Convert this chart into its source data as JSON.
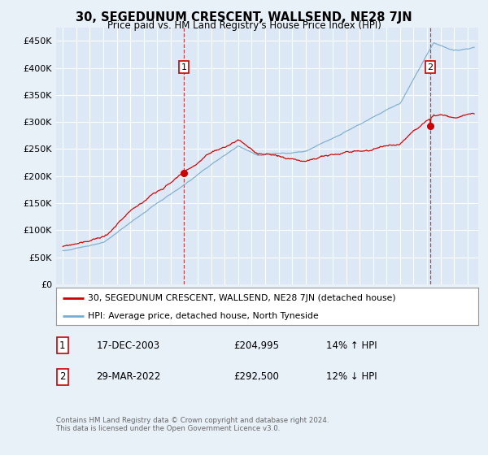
{
  "title": "30, SEGEDUNUM CRESCENT, WALLSEND, NE28 7JN",
  "subtitle": "Price paid vs. HM Land Registry's House Price Index (HPI)",
  "background_color": "#e8f0f8",
  "plot_bg_color": "#dce8f5",
  "grid_color": "#ffffff",
  "ylim": [
    0,
    475000
  ],
  "yticks": [
    0,
    50000,
    100000,
    150000,
    200000,
    250000,
    300000,
    350000,
    400000,
    450000
  ],
  "legend_entries": [
    "30, SEGEDUNUM CRESCENT, WALLSEND, NE28 7JN (detached house)",
    "HPI: Average price, detached house, North Tyneside"
  ],
  "legend_colors": [
    "#cc0000",
    "#7aacce"
  ],
  "annotation1": {
    "label": "1",
    "date": "17-DEC-2003",
    "price": "£204,995",
    "hpi": "14% ↑ HPI"
  },
  "annotation2": {
    "label": "2",
    "date": "29-MAR-2022",
    "price": "£292,500",
    "hpi": "12% ↓ HPI"
  },
  "footer1": "Contains HM Land Registry data © Crown copyright and database right 2024.",
  "footer2": "This data is licensed under the Open Government Licence v3.0.",
  "sale1_x": 2003.96,
  "sale1_y": 204995,
  "sale2_x": 2022.24,
  "sale2_y": 292500,
  "xlim_left": 1994.5,
  "xlim_right": 2025.8
}
